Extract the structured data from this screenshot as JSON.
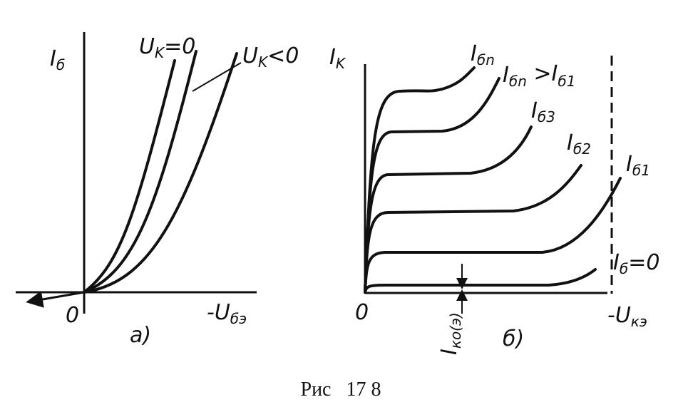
{
  "panel_a": {
    "y_axis_label": {
      "text": "I",
      "sub": "б"
    },
    "curve_label_zero": {
      "text": "U",
      "sub": "K",
      "rest": "=0"
    },
    "curve_label_neg": {
      "text": "U",
      "sub": "K",
      "rest": "<0"
    },
    "origin": "0",
    "x_axis_label": {
      "text": "-U",
      "sub": "бэ"
    },
    "panel_label": "a)"
  },
  "panel_b": {
    "y_axis_label": {
      "text": "I",
      "sub": "K"
    },
    "curves": [
      {
        "text": "I",
        "sub": "бn"
      },
      {
        "text": "I",
        "sub": "бn",
        "rest": " >I",
        "sub2": "б1"
      },
      {
        "text": "I",
        "sub": "б3"
      },
      {
        "text": "I",
        "sub": "б2"
      },
      {
        "text": "I",
        "sub": "б1"
      },
      {
        "text": "I",
        "sub": "б",
        "rest": "=0"
      }
    ],
    "origin": "0",
    "leakage_label": {
      "text": "I",
      "sub": "ко(э)"
    },
    "x_axis_label": {
      "text": "-U",
      "sub": "кэ"
    },
    "panel_label": "б)"
  },
  "caption": "Рис   17 8"
}
